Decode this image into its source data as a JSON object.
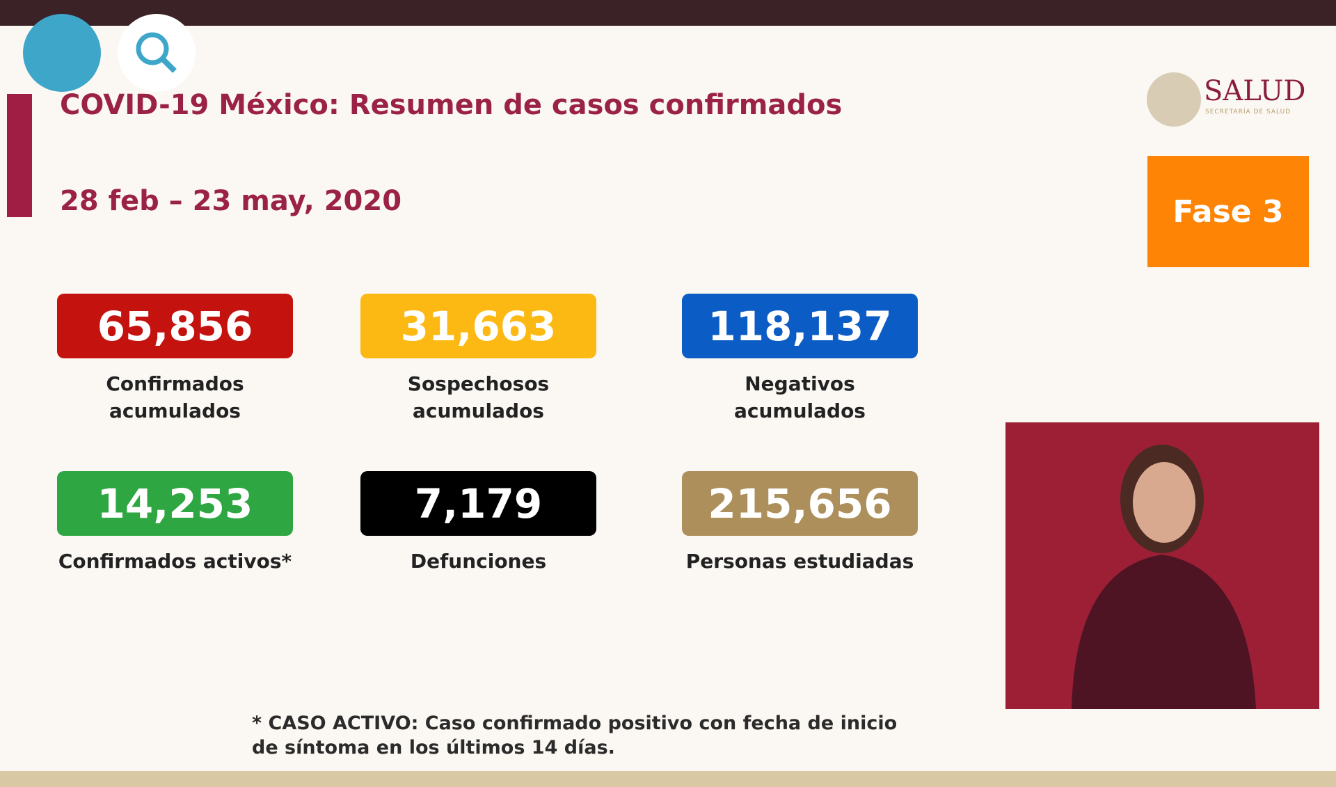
{
  "header": {
    "title": "COVID-19 México: Resumen de casos confirmados",
    "date": "28 feb – 23 may, 2020",
    "phase": "Fase 3",
    "logo": {
      "name": "SALUD",
      "subtitle": "SECRETARÍA DE SALUD"
    }
  },
  "cards": [
    {
      "value": "65,856",
      "label": "Confirmados acumulados",
      "color": "#c4130f"
    },
    {
      "value": "31,663",
      "label": "Sospechosos acumulados",
      "color": "#fdb913"
    },
    {
      "value": "118,137",
      "label": "Negativos acumulados",
      "color": "#0b5cc5"
    },
    {
      "value": "14,253",
      "label": "Confirmados activos*",
      "color": "#2ea642"
    },
    {
      "value": "7,179",
      "label": "Defunciones",
      "color": "#000000"
    },
    {
      "value": "215,656",
      "label": "Personas estudiadas",
      "color": "#ad8f5c"
    }
  ],
  "footnote": "* CASO ACTIVO: Caso confirmado positivo con fecha de inicio de síntoma en los últimos 14 días."
}
